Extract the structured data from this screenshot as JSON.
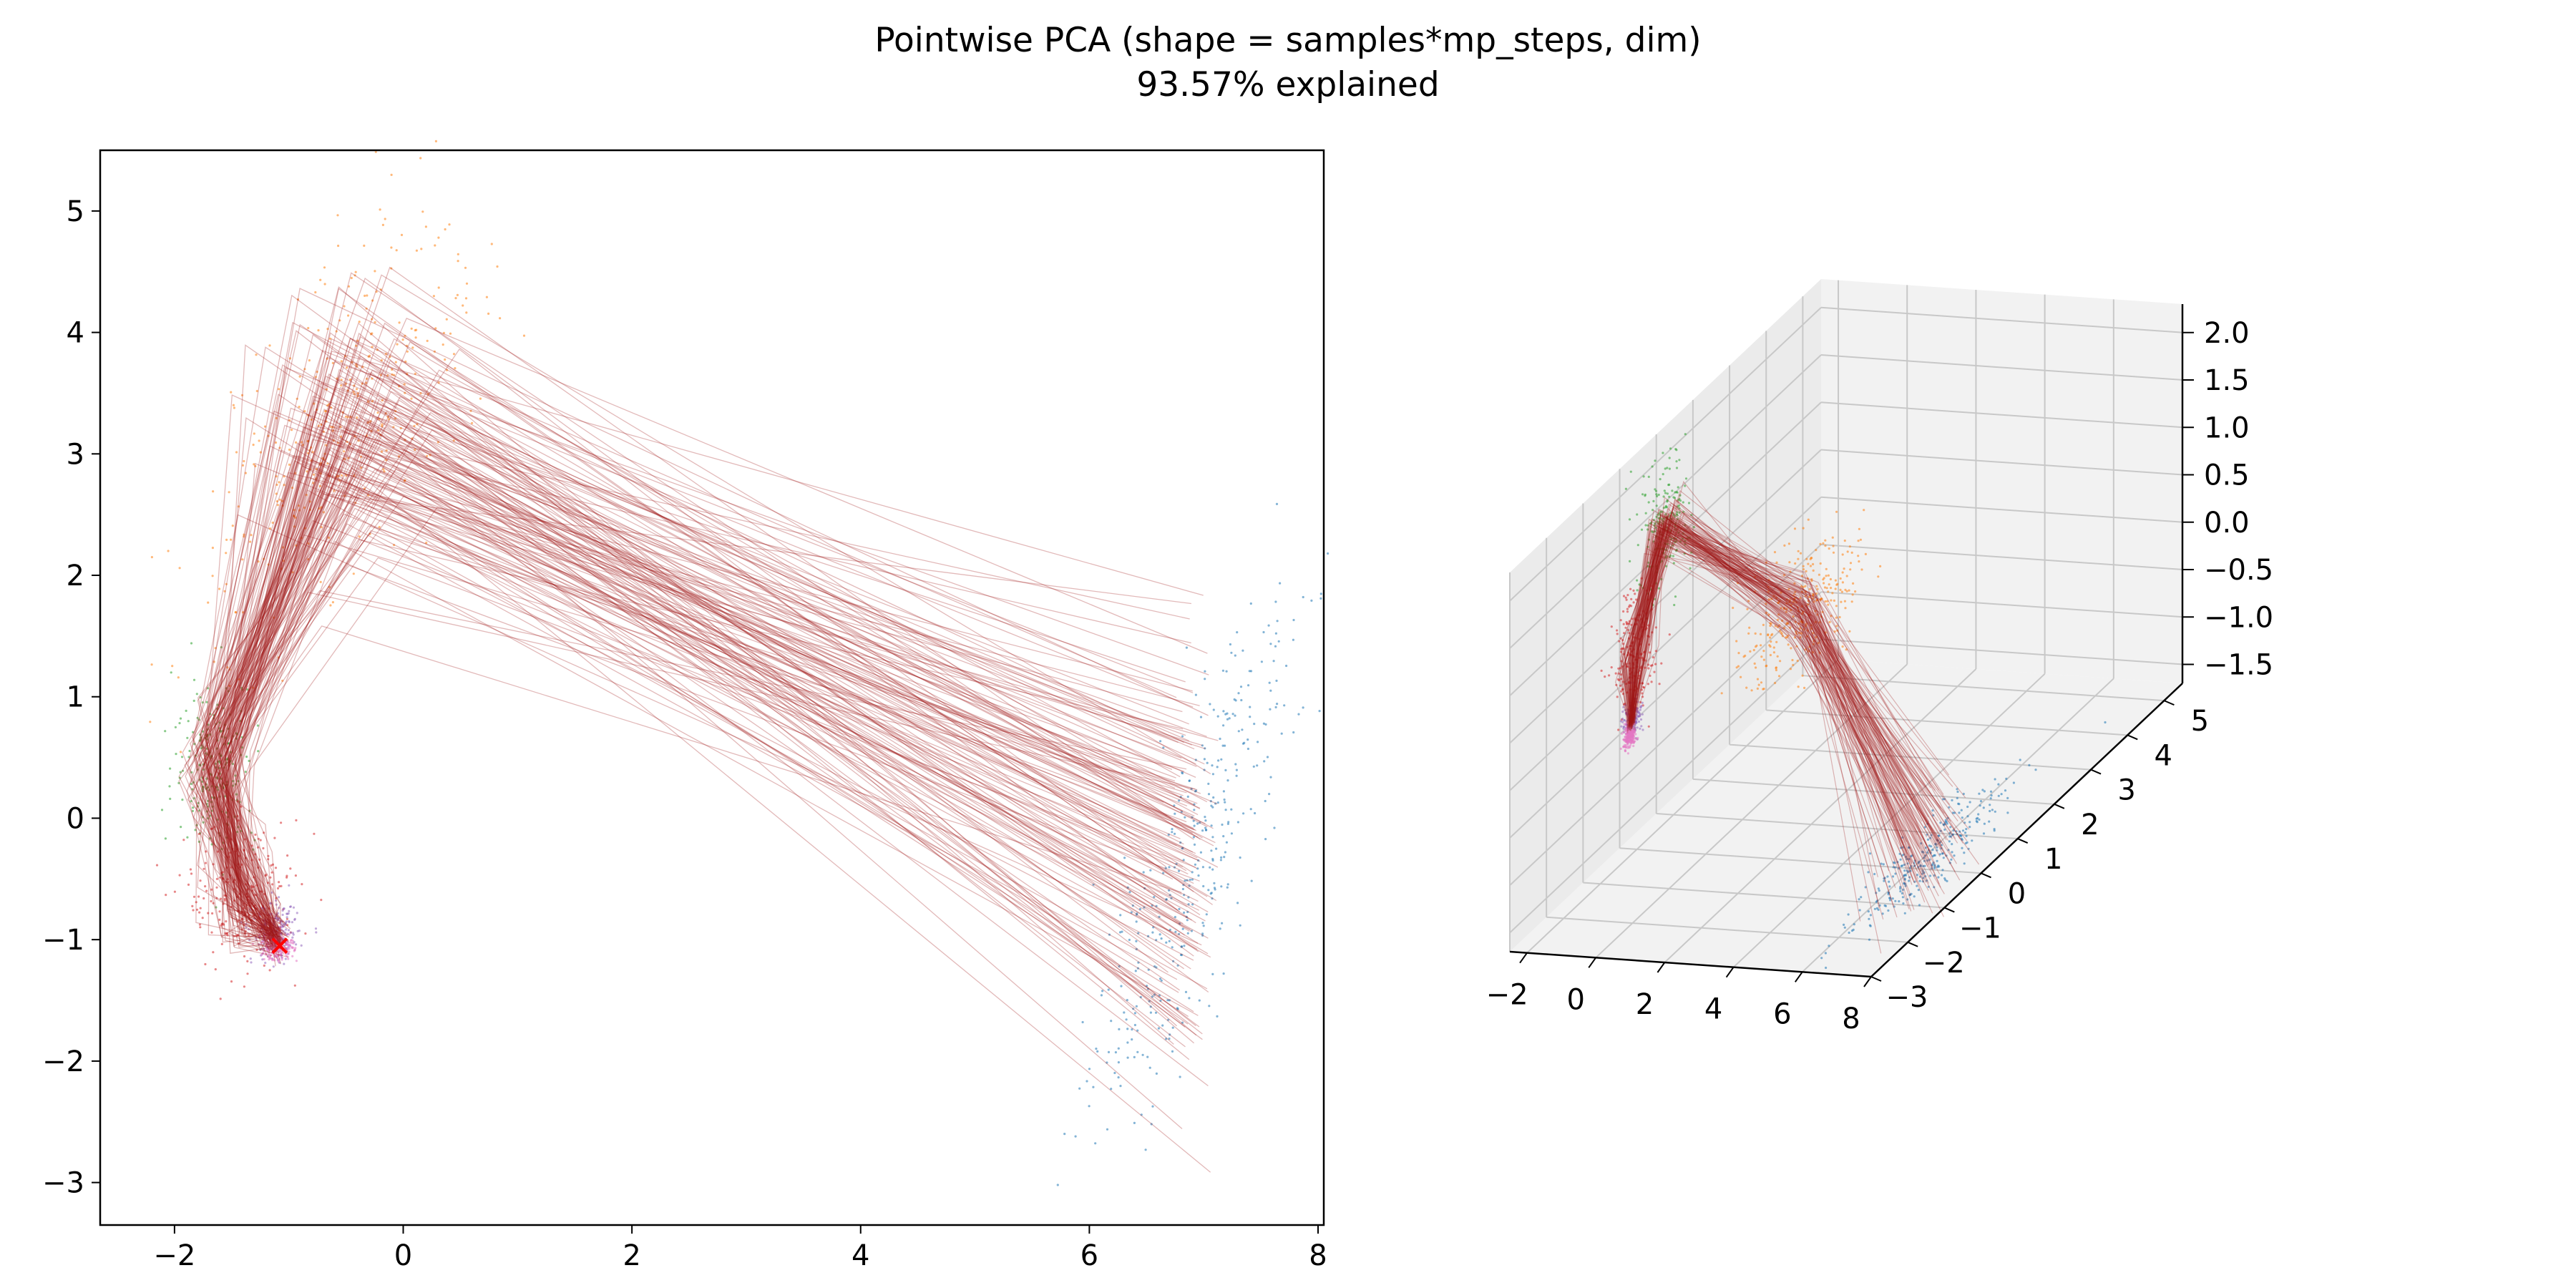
{
  "figure": {
    "title_line1": "Pointwise PCA (shape = samples*mp_steps, dim)",
    "title_line2": "93.57% explained"
  },
  "colors": {
    "trajectory": "#a01818",
    "cluster_blue": "#1f77b4",
    "cluster_green": "#2ca02c",
    "cluster_orange": "#ff7f0e",
    "cluster_red": "#d62728",
    "cluster_purple": "#9467bd",
    "cluster_pink": "#e377c2",
    "endpoint_marker": "#ff0000",
    "pane_fill": "#f2f2f2",
    "grid": "#c8c8c8"
  },
  "chart_data": [
    {
      "type": "scatter",
      "subtype": "2d projection with trajectories",
      "title": "",
      "xlabel": "",
      "ylabel": "",
      "xlim": [
        -2.65,
        8.05
      ],
      "ylim": [
        -3.35,
        5.5
      ],
      "xticks": [
        -2,
        0,
        2,
        4,
        6,
        8
      ],
      "yticks": [
        -3,
        -2,
        -1,
        0,
        1,
        2,
        3,
        4,
        5
      ],
      "grid": false,
      "legend": "none",
      "clusters": [
        {
          "color": "cluster_blue",
          "center": [
            6.9,
            -0.4
          ],
          "spread": [
            0.25,
            1.1
          ],
          "tilt": 0.55
        },
        {
          "color": "cluster_orange",
          "center": [
            -0.6,
            3.2
          ],
          "spread": [
            0.45,
            0.8
          ],
          "tilt": -1.9
        },
        {
          "color": "cluster_green",
          "center": [
            -1.65,
            0.45
          ],
          "spread": [
            0.18,
            0.35
          ],
          "tilt": 0
        },
        {
          "color": "cluster_red",
          "center": [
            -1.4,
            -0.65
          ],
          "spread": [
            0.25,
            0.3
          ],
          "tilt": 0
        },
        {
          "color": "cluster_purple",
          "center": [
            -1.12,
            -0.95
          ],
          "spread": [
            0.1,
            0.12
          ],
          "tilt": 0
        },
        {
          "color": "cluster_pink",
          "center": [
            -1.1,
            -1.05
          ],
          "spread": [
            0.07,
            0.06
          ],
          "tilt": 0
        }
      ],
      "trajectory_path": [
        [
          6.9,
          -0.4
        ],
        [
          -0.6,
          3.2
        ],
        [
          -1.65,
          0.45
        ],
        [
          -1.4,
          -0.65
        ],
        [
          -1.1,
          -1.0
        ]
      ],
      "endpoint": [
        -1.08,
        -1.05
      ]
    },
    {
      "type": "scatter",
      "subtype": "3d projection with trajectories",
      "title": "",
      "xlim": [
        -2.5,
        8
      ],
      "ylim": [
        -3,
        5.5
      ],
      "zlim": [
        -1.7,
        2.3
      ],
      "xticks": [
        -2,
        0,
        2,
        4,
        6,
        8
      ],
      "yticks": [
        -3,
        -2,
        -1,
        0,
        1,
        2,
        3,
        4,
        5
      ],
      "zticks": [
        -1.5,
        -1.0,
        -0.5,
        0.0,
        0.5,
        1.0,
        1.5,
        2.0
      ],
      "xtick_labels": [
        "−2",
        "0",
        "2",
        "4",
        "6",
        "8"
      ],
      "ytick_labels": [
        "−3",
        "−2",
        "−1",
        "0",
        "1",
        "2",
        "3",
        "4",
        "5"
      ],
      "ztick_labels": [
        "−1.5",
        "−1.0",
        "−0.5",
        "0.0",
        "0.5",
        "1.0",
        "1.5",
        "2.0"
      ],
      "grid": true,
      "legend": "none",
      "clusters": [
        {
          "color": "cluster_blue",
          "center": [
            6.9,
            -0.4,
            -1.4
          ],
          "spread": [
            0.3,
            1.0,
            0.15
          ]
        },
        {
          "color": "cluster_orange",
          "center": [
            -0.6,
            3.2,
            -0.3
          ],
          "spread": [
            0.5,
            0.7,
            0.3
          ]
        },
        {
          "color": "cluster_green",
          "center": [
            -1.65,
            0.45,
            1.6
          ],
          "spread": [
            0.2,
            0.3,
            0.35
          ]
        },
        {
          "color": "cluster_red",
          "center": [
            -1.4,
            -0.65,
            0.6
          ],
          "spread": [
            0.2,
            0.25,
            0.3
          ]
        },
        {
          "color": "cluster_purple",
          "center": [
            -1.12,
            -0.95,
            0.05
          ],
          "spread": [
            0.08,
            0.1,
            0.1
          ]
        },
        {
          "color": "cluster_pink",
          "center": [
            -1.1,
            -1.05,
            -0.1
          ],
          "spread": [
            0.06,
            0.06,
            0.06
          ]
        }
      ],
      "trajectory_path": [
        [
          6.9,
          -0.4,
          -1.4
        ],
        [
          -0.6,
          3.2,
          -0.3
        ],
        [
          -1.65,
          0.45,
          1.6
        ],
        [
          -1.4,
          -0.65,
          0.6
        ],
        [
          -1.1,
          -1.0,
          0.0
        ]
      ]
    }
  ]
}
